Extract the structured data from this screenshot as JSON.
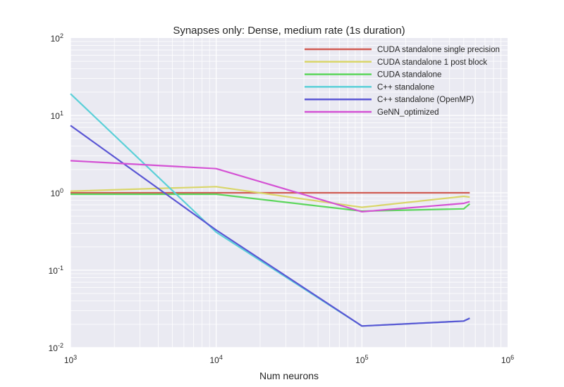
{
  "chart_data": {
    "type": "line",
    "title": "Synapses only: Dense, medium rate (1s duration)",
    "xlabel": "Num neurons",
    "ylabel": "",
    "xscale": "log",
    "yscale": "log",
    "xlim": [
      1000,
      1000000
    ],
    "ylim": [
      0.01,
      100
    ],
    "x_ticks": [
      {
        "base": "10",
        "exp": "3",
        "value": 1000
      },
      {
        "base": "10",
        "exp": "4",
        "value": 10000
      },
      {
        "base": "10",
        "exp": "5",
        "value": 100000
      },
      {
        "base": "10",
        "exp": "6",
        "value": 1000000
      }
    ],
    "y_ticks": [
      {
        "base": "10",
        "exp": "-2",
        "value": 0.01
      },
      {
        "base": "10",
        "exp": "-1",
        "value": 0.1
      },
      {
        "base": "10",
        "exp": "0",
        "value": 1
      },
      {
        "base": "10",
        "exp": "1",
        "value": 10
      },
      {
        "base": "10",
        "exp": "2",
        "value": 100
      }
    ],
    "grid": true,
    "legend_position": "top-right",
    "series": [
      {
        "name": "CUDA standalone single precision",
        "color": "#d15b52",
        "x": [
          1000,
          10000,
          100000,
          500000,
          550000
        ],
        "y": [
          1.0,
          1.0,
          1.0,
          1.0,
          1.0
        ]
      },
      {
        "name": "CUDA standalone 1 post block",
        "color": "#d9d66a",
        "x": [
          1000,
          10000,
          100000,
          500000,
          550000
        ],
        "y": [
          1.05,
          1.2,
          0.65,
          0.9,
          0.88
        ]
      },
      {
        "name": "CUDA standalone",
        "color": "#5cd65c",
        "x": [
          1000,
          10000,
          100000,
          500000,
          550000
        ],
        "y": [
          0.96,
          0.96,
          0.58,
          0.62,
          0.72
        ]
      },
      {
        "name": "C++ standalone",
        "color": "#5bd0d8",
        "x": [
          1000,
          10000,
          100000,
          500000,
          550000
        ],
        "y": [
          19,
          0.31,
          0.019,
          0.022,
          0.024
        ]
      },
      {
        "name": "C++ standalone (OpenMP)",
        "color": "#5a56d4",
        "x": [
          1000,
          10000,
          100000,
          500000,
          550000
        ],
        "y": [
          7.4,
          0.33,
          0.019,
          0.022,
          0.024
        ]
      },
      {
        "name": "GeNN_optimized",
        "color": "#d452d4",
        "x": [
          1000,
          10000,
          100000,
          500000,
          550000
        ],
        "y": [
          2.6,
          2.05,
          0.57,
          0.73,
          0.77
        ]
      }
    ]
  }
}
